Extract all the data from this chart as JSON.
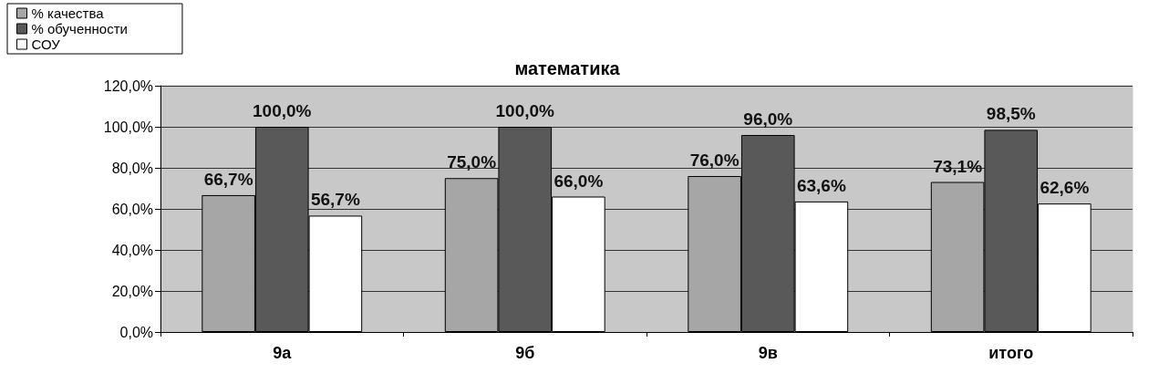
{
  "chart_data": {
    "type": "bar",
    "title": "математика",
    "categories": [
      "9а",
      "9б",
      "9в",
      "итого"
    ],
    "series": [
      {
        "name": "% качества",
        "color": "#a6a6a6",
        "values": [
          66.7,
          75.0,
          76.0,
          73.1
        ],
        "value_labels": [
          "66,7%",
          "75,0%",
          "76,0%",
          "73,1%"
        ]
      },
      {
        "name": "% обученности",
        "color": "#595959",
        "values": [
          100.0,
          100.0,
          96.0,
          98.5
        ],
        "value_labels": [
          "100,0%",
          "100,0%",
          "96,0%",
          "98,5%"
        ]
      },
      {
        "name": "СОУ",
        "color": "#ffffff",
        "values": [
          56.7,
          66.0,
          63.6,
          62.6
        ],
        "value_labels": [
          "56,7%",
          "66,0%",
          "63,6%",
          "62,6%"
        ]
      }
    ],
    "ylim": [
      0,
      120
    ],
    "yticks": [
      {
        "value": 0,
        "label": "0,0%"
      },
      {
        "value": 20,
        "label": "20,0%"
      },
      {
        "value": 40,
        "label": "40,0%"
      },
      {
        "value": 60,
        "label": "60,0%"
      },
      {
        "value": 80,
        "label": "80,0%"
      },
      {
        "value": 100,
        "label": "100,0%"
      },
      {
        "value": 120,
        "label": "120,0%"
      }
    ],
    "grid": "y",
    "legend": "top left"
  }
}
